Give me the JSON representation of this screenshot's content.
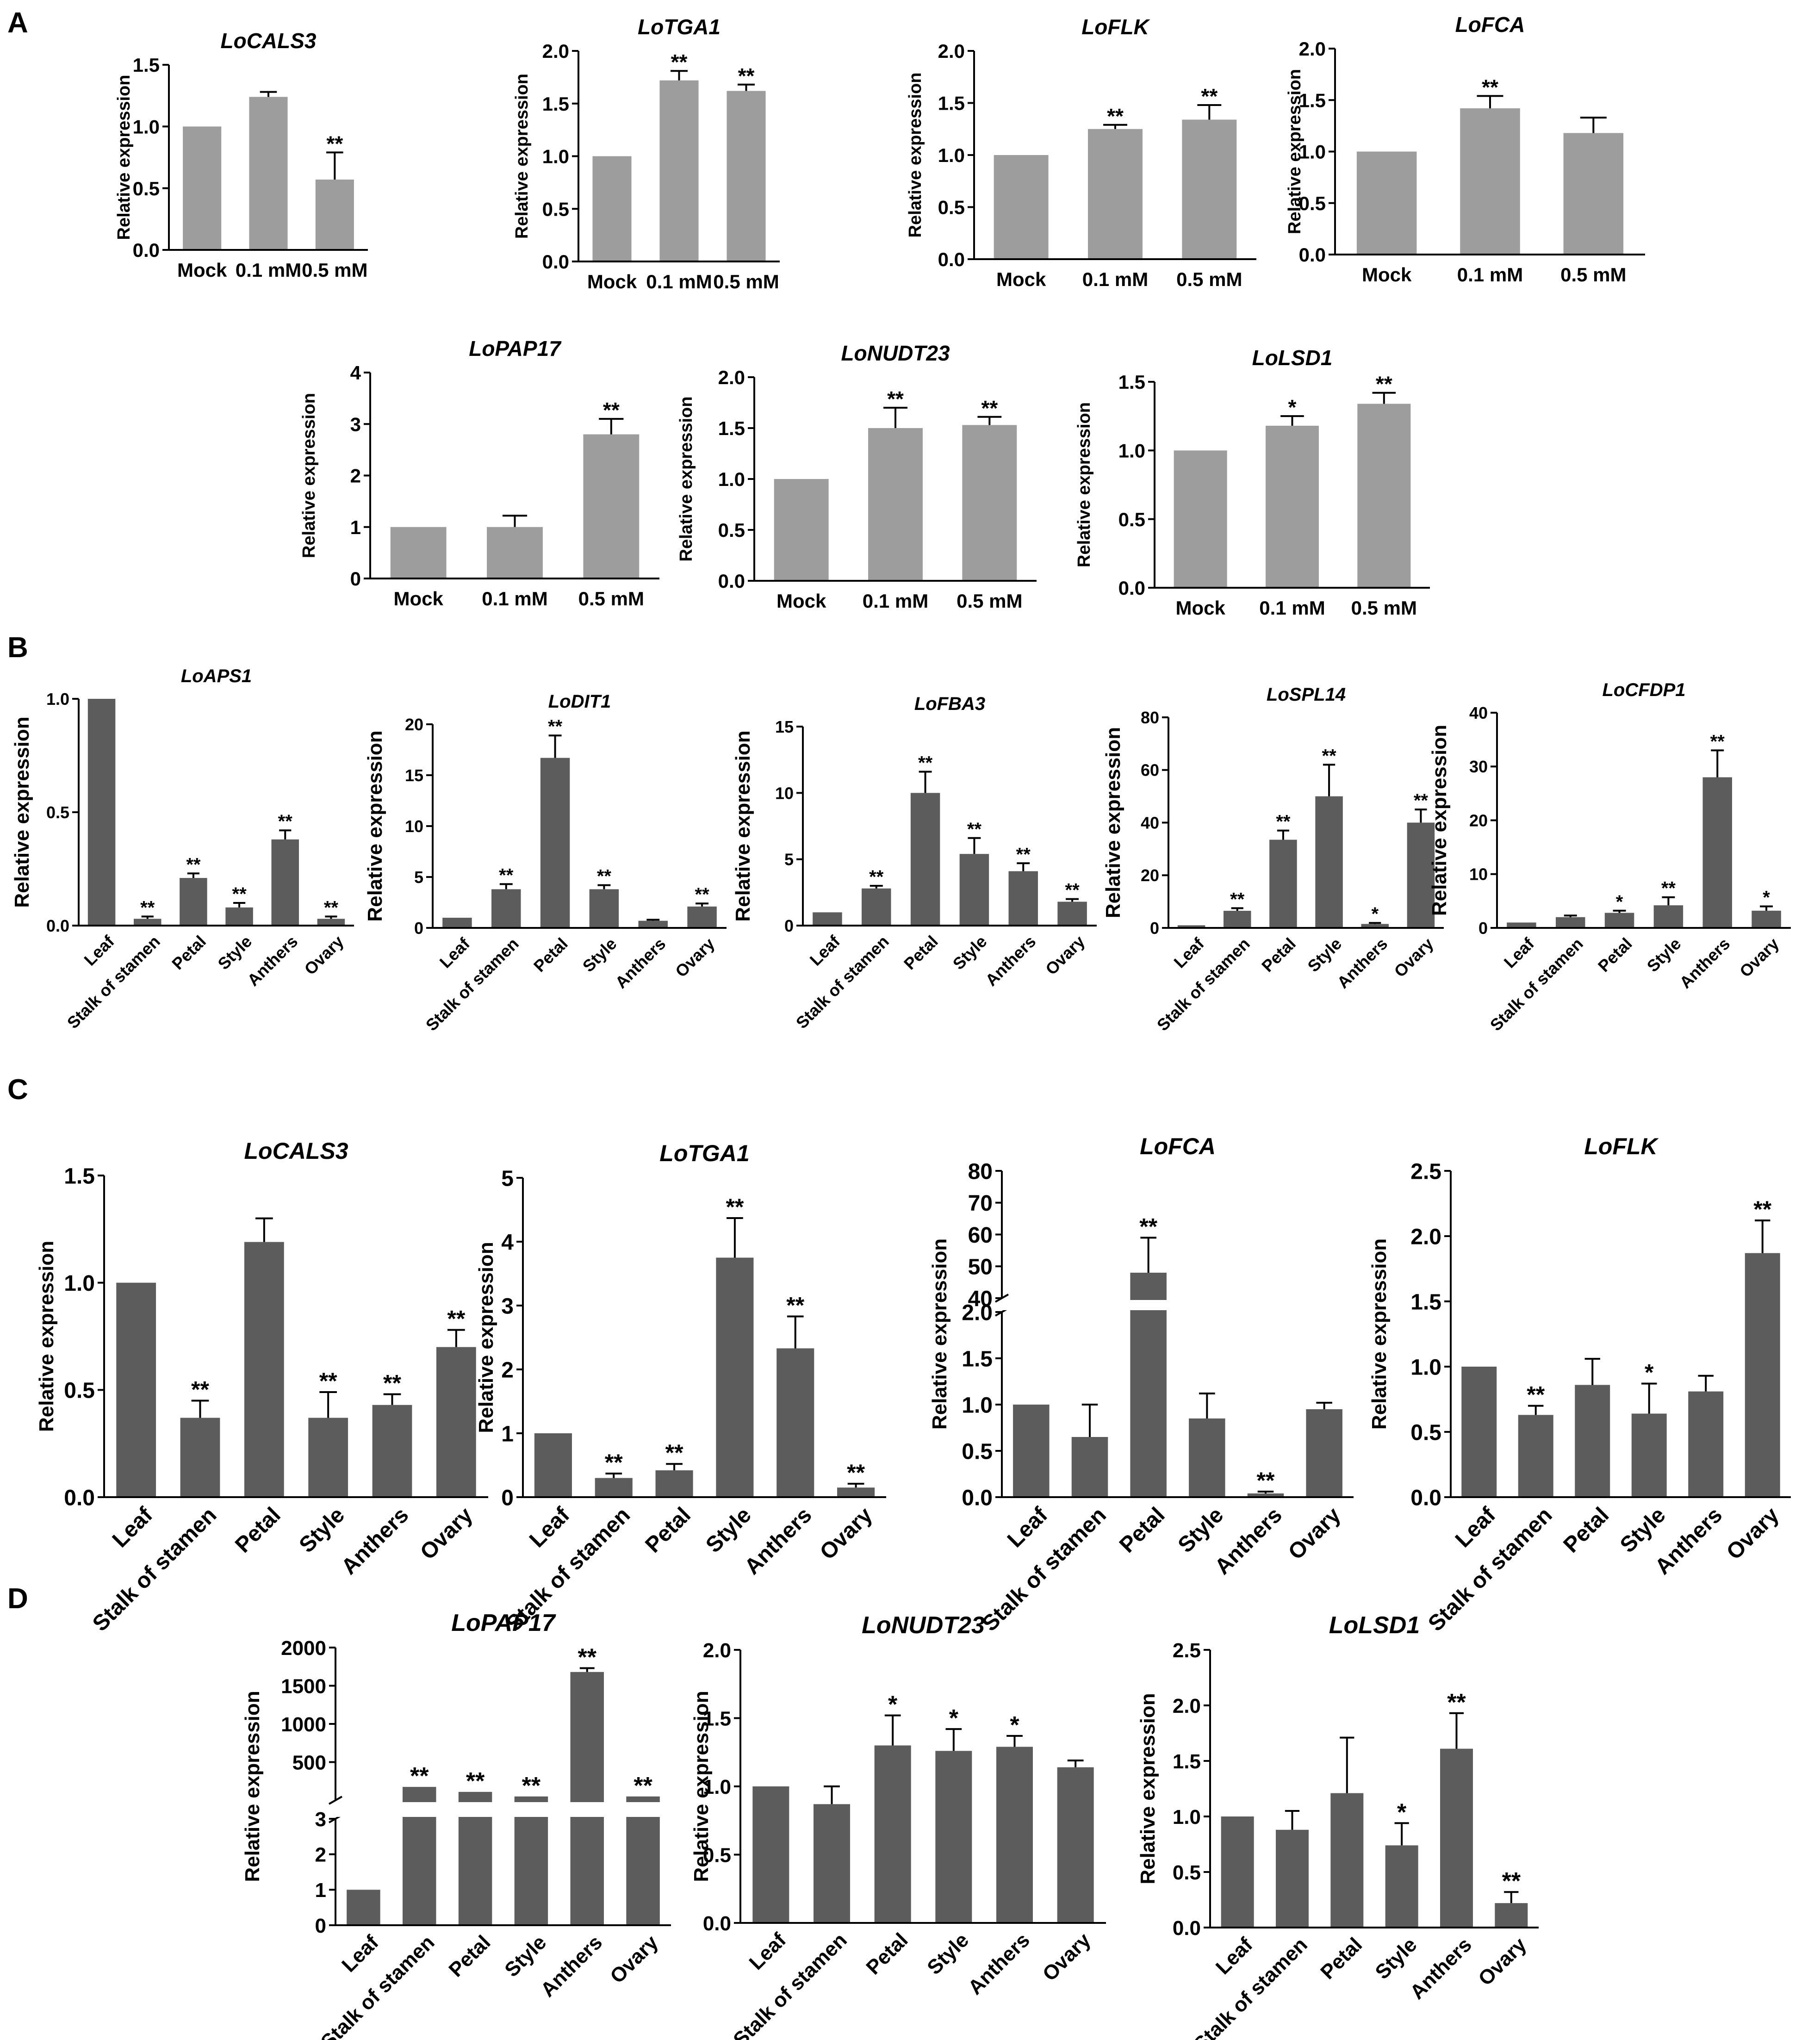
{
  "figure": {
    "panel_labels": [
      "A",
      "B",
      "C",
      "D"
    ]
  },
  "colors": {
    "bar_light": "#9d9d9d",
    "bar_dark": "#5c5c5c",
    "axis": "#000000",
    "text": "#000000"
  },
  "chart_data": [
    {
      "id": "A1",
      "panel": "A",
      "type": "bar",
      "title": "LoCALS3",
      "ylabel": "Relative expression",
      "categories": [
        "Mock",
        "0.1 mM",
        "0.5 mM"
      ],
      "values": [
        1.0,
        1.24,
        0.57
      ],
      "errors": [
        0,
        0.04,
        0.22
      ],
      "sig": [
        "",
        "",
        "**"
      ],
      "ylim": [
        0,
        1.5
      ],
      "ticks": [
        "0.0",
        "0.5",
        "1.0",
        "1.5"
      ],
      "tick_values": [
        0,
        0.5,
        1.0,
        1.5
      ]
    },
    {
      "id": "A2",
      "panel": "A",
      "type": "bar",
      "title": "LoTGA1",
      "ylabel": "Relative expression",
      "categories": [
        "Mock",
        "0.1 mM",
        "0.5 mM"
      ],
      "values": [
        1.0,
        1.72,
        1.62
      ],
      "errors": [
        0,
        0.09,
        0.06
      ],
      "sig": [
        "",
        "**",
        "**"
      ],
      "ylim": [
        0,
        2.0
      ],
      "ticks": [
        "0.0",
        "0.5",
        "1.0",
        "1.5",
        "2.0"
      ],
      "tick_values": [
        0,
        0.5,
        1.0,
        1.5,
        2.0
      ]
    },
    {
      "id": "A3",
      "panel": "A",
      "type": "bar",
      "title": "LoFLK",
      "ylabel": "Relative expression",
      "categories": [
        "Mock",
        "0.1 mM",
        "0.5 mM"
      ],
      "values": [
        1.0,
        1.25,
        1.34
      ],
      "errors": [
        0,
        0.04,
        0.14
      ],
      "sig": [
        "",
        "**",
        "**"
      ],
      "ylim": [
        0,
        2.0
      ],
      "ticks": [
        "0.0",
        "0.5",
        "1.0",
        "1.5",
        "2.0"
      ],
      "tick_values": [
        0,
        0.5,
        1.0,
        1.5,
        2.0
      ]
    },
    {
      "id": "A4",
      "panel": "A",
      "type": "bar",
      "title": "LoFCA",
      "ylabel": "Relative expression",
      "categories": [
        "Mock",
        "0.1 mM",
        "0.5 mM"
      ],
      "values": [
        1.0,
        1.42,
        1.18
      ],
      "errors": [
        0,
        0.12,
        0.15
      ],
      "sig": [
        "",
        "**",
        ""
      ],
      "ylim": [
        0,
        2.0
      ],
      "ticks": [
        "0.0",
        "0.5",
        "1.0",
        "1.5",
        "2.0"
      ],
      "tick_values": [
        0,
        0.5,
        1.0,
        1.5,
        2.0
      ]
    },
    {
      "id": "A5",
      "panel": "A",
      "type": "bar",
      "title": "LoPAP17",
      "ylabel": "Relative expression",
      "categories": [
        "Mock",
        "0.1 mM",
        "0.5 mM"
      ],
      "values": [
        1.0,
        1.0,
        2.8
      ],
      "errors": [
        0,
        0.22,
        0.3
      ],
      "sig": [
        "",
        "",
        "**"
      ],
      "ylim": [
        0,
        4
      ],
      "ticks": [
        "0",
        "1",
        "2",
        "3",
        "4"
      ],
      "tick_values": [
        0,
        1,
        2,
        3,
        4
      ]
    },
    {
      "id": "A6",
      "panel": "A",
      "type": "bar",
      "title": "LoNUDT23",
      "ylabel": "Relative expression",
      "categories": [
        "Mock",
        "0.1 mM",
        "0.5 mM"
      ],
      "values": [
        1.0,
        1.5,
        1.53
      ],
      "errors": [
        0,
        0.2,
        0.08
      ],
      "sig": [
        "",
        "**",
        "**"
      ],
      "ylim": [
        0,
        2.0
      ],
      "ticks": [
        "0.0",
        "0.5",
        "1.0",
        "1.5",
        "2.0"
      ],
      "tick_values": [
        0,
        0.5,
        1.0,
        1.5,
        2.0
      ]
    },
    {
      "id": "A7",
      "panel": "A",
      "type": "bar",
      "title": "LoLSD1",
      "ylabel": "Relative expression",
      "categories": [
        "Mock",
        "0.1 mM",
        "0.5 mM"
      ],
      "values": [
        1.0,
        1.18,
        1.34
      ],
      "errors": [
        0,
        0.07,
        0.08
      ],
      "sig": [
        "",
        "*",
        "**"
      ],
      "ylim": [
        0,
        1.5
      ],
      "ticks": [
        "0.0",
        "0.5",
        "1.0",
        "1.5"
      ],
      "tick_values": [
        0,
        0.5,
        1.0,
        1.5
      ]
    },
    {
      "id": "B1",
      "panel": "B",
      "type": "bar",
      "title": "LoAPS1",
      "ylabel": "Relative expression",
      "categories": [
        "Leaf",
        "Stalk of stamen",
        "Petal",
        "Style",
        "Anthers",
        "Ovary"
      ],
      "values": [
        1.0,
        0.03,
        0.21,
        0.08,
        0.38,
        0.03
      ],
      "errors": [
        0,
        0.01,
        0.02,
        0.02,
        0.04,
        0.01
      ],
      "sig": [
        "",
        "**",
        "**",
        "**",
        "**",
        "**"
      ],
      "ylim": [
        0,
        1.0
      ],
      "ticks": [
        "0.0",
        "0.5",
        "1.0"
      ],
      "tick_values": [
        0,
        0.5,
        1.0
      ]
    },
    {
      "id": "B2",
      "panel": "B",
      "type": "bar",
      "title": "LoDIT1",
      "ylabel": "Relative expression",
      "categories": [
        "Leaf",
        "Stalk of stamen",
        "Petal",
        "Style",
        "Anthers",
        "Ovary"
      ],
      "values": [
        1.0,
        3.8,
        16.7,
        3.8,
        0.7,
        2.1
      ],
      "errors": [
        0,
        0.5,
        2.2,
        0.4,
        0.1,
        0.3
      ],
      "sig": [
        "",
        "**",
        "**",
        "**",
        "",
        "**"
      ],
      "ylim": [
        0,
        20
      ],
      "ticks": [
        "0",
        "5",
        "10",
        "15",
        "20"
      ],
      "tick_values": [
        0,
        5,
        10,
        15,
        20
      ]
    },
    {
      "id": "B3",
      "panel": "B",
      "type": "bar",
      "title": "LoFBA3",
      "ylabel": "Relative expression",
      "categories": [
        "Leaf",
        "Stalk of stamen",
        "Petal",
        "Style",
        "Anthers",
        "Ovary"
      ],
      "values": [
        1.0,
        2.8,
        10.0,
        5.4,
        4.1,
        1.8
      ],
      "errors": [
        0,
        0.2,
        1.6,
        1.2,
        0.6,
        0.2
      ],
      "sig": [
        "",
        "**",
        "**",
        "**",
        "**",
        "**"
      ],
      "ylim": [
        0,
        15
      ],
      "ticks": [
        "0",
        "5",
        "10",
        "15"
      ],
      "tick_values": [
        0,
        5,
        10,
        15
      ]
    },
    {
      "id": "B4",
      "panel": "B",
      "type": "bar",
      "title": "LoSPL14",
      "ylabel": "Relative expression",
      "categories": [
        "Leaf",
        "Stalk of stamen",
        "Petal",
        "Style",
        "Anthers",
        "Ovary"
      ],
      "values": [
        1.0,
        6.5,
        33.5,
        50.0,
        1.5,
        40.0
      ],
      "errors": [
        0,
        1.0,
        3.5,
        12.0,
        0.4,
        5.0
      ],
      "sig": [
        "",
        "**",
        "**",
        "**",
        "*",
        "**"
      ],
      "ylim": [
        0,
        80
      ],
      "ticks": [
        "0",
        "20",
        "40",
        "60",
        "80"
      ],
      "tick_values": [
        0,
        20,
        40,
        60,
        80
      ]
    },
    {
      "id": "B5",
      "panel": "B",
      "type": "bar",
      "title": "LoCFDP1",
      "ylabel": "Relative expression",
      "categories": [
        "Leaf",
        "Stalk of stamen",
        "Petal",
        "Style",
        "Anthers",
        "Ovary"
      ],
      "values": [
        1.0,
        2.0,
        2.8,
        4.2,
        28.0,
        3.2
      ],
      "errors": [
        0,
        0.3,
        0.4,
        1.5,
        5.0,
        0.8
      ],
      "sig": [
        "",
        "",
        "*",
        "**",
        "**",
        "*"
      ],
      "ylim": [
        0,
        40
      ],
      "ticks": [
        "0",
        "10",
        "20",
        "30",
        "40"
      ],
      "tick_values": [
        0,
        10,
        20,
        30,
        40
      ]
    },
    {
      "id": "C1",
      "panel": "C",
      "type": "bar",
      "title": "LoCALS3",
      "ylabel": "Relative expression",
      "categories": [
        "Leaf",
        "Stalk of stamen",
        "Petal",
        "Style",
        "Anthers",
        "Ovary"
      ],
      "values": [
        1.0,
        0.37,
        1.19,
        0.37,
        0.43,
        0.7
      ],
      "errors": [
        0,
        0.08,
        0.11,
        0.12,
        0.05,
        0.08
      ],
      "sig": [
        "",
        "**",
        "",
        "**",
        "**",
        "**"
      ],
      "ylim": [
        0,
        1.5
      ],
      "ticks": [
        "0.0",
        "0.5",
        "1.0",
        "1.5"
      ],
      "tick_values": [
        0,
        0.5,
        1.0,
        1.5
      ]
    },
    {
      "id": "C2",
      "panel": "C",
      "type": "bar",
      "title": "LoTGA1",
      "ylabel": "Relative expression",
      "categories": [
        "Leaf",
        "Stalk of stamen",
        "Petal",
        "Style",
        "Anthers",
        "Ovary"
      ],
      "values": [
        1.0,
        0.3,
        0.42,
        3.75,
        2.33,
        0.15
      ],
      "errors": [
        0,
        0.07,
        0.1,
        0.62,
        0.5,
        0.06
      ],
      "sig": [
        "",
        "**",
        "**",
        "**",
        "**",
        "**"
      ],
      "ylim": [
        0,
        5
      ],
      "ticks": [
        "0",
        "1",
        "2",
        "3",
        "4",
        "5"
      ],
      "tick_values": [
        0,
        1,
        2,
        3,
        4,
        5
      ]
    },
    {
      "id": "C3",
      "panel": "C",
      "type": "bar",
      "title": "LoFCA",
      "ylabel": "Relative expression",
      "broken_axis": true,
      "categories": [
        "Leaf",
        "Stalk of stamen",
        "Petal",
        "Style",
        "Anthers",
        "Ovary"
      ],
      "values": [
        1.0,
        0.65,
        48.0,
        0.85,
        0.04,
        0.95
      ],
      "errors": [
        0,
        0.35,
        11.0,
        0.27,
        0.02,
        0.07
      ],
      "sig": [
        "",
        "",
        "**",
        "",
        "**",
        ""
      ],
      "lower_ylim": [
        0,
        2.0
      ],
      "upper_ylim": [
        40,
        80
      ],
      "ticks": [
        "0.0",
        "0.5",
        "1.0",
        "1.5",
        "2.0",
        "40",
        "50",
        "60",
        "70",
        "80"
      ],
      "tick_values": [
        0,
        0.5,
        1.0,
        1.5,
        2.0,
        40,
        50,
        60,
        70,
        80
      ]
    },
    {
      "id": "C4",
      "panel": "C",
      "type": "bar",
      "title": "LoFLK",
      "ylabel": "Relative expression",
      "categories": [
        "Leaf",
        "Stalk of stamen",
        "Petal",
        "Style",
        "Anthers",
        "Ovary"
      ],
      "values": [
        1.0,
        0.63,
        0.86,
        0.64,
        0.81,
        1.87
      ],
      "errors": [
        0,
        0.07,
        0.2,
        0.23,
        0.12,
        0.25
      ],
      "sig": [
        "",
        "**",
        "",
        "*",
        "",
        "**"
      ],
      "ylim": [
        0,
        2.5
      ],
      "ticks": [
        "0.0",
        "0.5",
        "1.0",
        "1.5",
        "2.0",
        "2.5"
      ],
      "tick_values": [
        0,
        0.5,
        1.0,
        1.5,
        2.0,
        2.5
      ]
    },
    {
      "id": "D1",
      "panel": "D",
      "type": "bar",
      "title": "LoPAP17",
      "ylabel": "Relative expression",
      "broken_axis": true,
      "categories": [
        "Leaf",
        "Stalk of stamen",
        "Petal",
        "Style",
        "Anthers",
        "Ovary"
      ],
      "values": [
        1.0,
        175,
        110,
        50,
        1680,
        50
      ],
      "errors": [
        0,
        0,
        0,
        0,
        50,
        0
      ],
      "sig": [
        "",
        "**",
        "**",
        "**",
        "**",
        "**"
      ],
      "lower_ylim": [
        0,
        3
      ],
      "upper_ylim": [
        0,
        2000
      ],
      "ticks": [
        "0",
        "1",
        "2",
        "3",
        "500",
        "1000",
        "1500",
        "2000"
      ],
      "tick_values": [
        0,
        1,
        2,
        3,
        500,
        1000,
        1500,
        2000
      ]
    },
    {
      "id": "D2",
      "panel": "D",
      "type": "bar",
      "title": "LoNUDT23",
      "ylabel": "Relative expression",
      "categories": [
        "Leaf",
        "Stalk of stamen",
        "Petal",
        "Style",
        "Anthers",
        "Ovary"
      ],
      "values": [
        1.0,
        0.87,
        1.3,
        1.26,
        1.29,
        1.14
      ],
      "errors": [
        0,
        0.13,
        0.22,
        0.16,
        0.08,
        0.05
      ],
      "sig": [
        "",
        "",
        "*",
        "*",
        "*",
        ""
      ],
      "ylim": [
        0,
        2.0
      ],
      "ticks": [
        "0.0",
        "0.5",
        "1.0",
        "1.5",
        "2.0"
      ],
      "tick_values": [
        0,
        0.5,
        1.0,
        1.5,
        2.0
      ]
    },
    {
      "id": "D3",
      "panel": "D",
      "type": "bar",
      "title": "LoLSD1",
      "ylabel": "Relative expression",
      "categories": [
        "Leaf",
        "Stalk of stamen",
        "Petal",
        "Style",
        "Anthers",
        "Ovary"
      ],
      "values": [
        1.0,
        0.88,
        1.21,
        0.74,
        1.61,
        0.22
      ],
      "errors": [
        0,
        0.17,
        0.5,
        0.2,
        0.32,
        0.1
      ],
      "sig": [
        "",
        "",
        "",
        "*",
        "**",
        "**"
      ],
      "ylim": [
        0,
        2.5
      ],
      "ticks": [
        "0.0",
        "0.5",
        "1.0",
        "1.5",
        "2.0",
        "2.5"
      ],
      "tick_values": [
        0,
        0.5,
        1.0,
        1.5,
        2.0,
        2.5
      ]
    }
  ]
}
